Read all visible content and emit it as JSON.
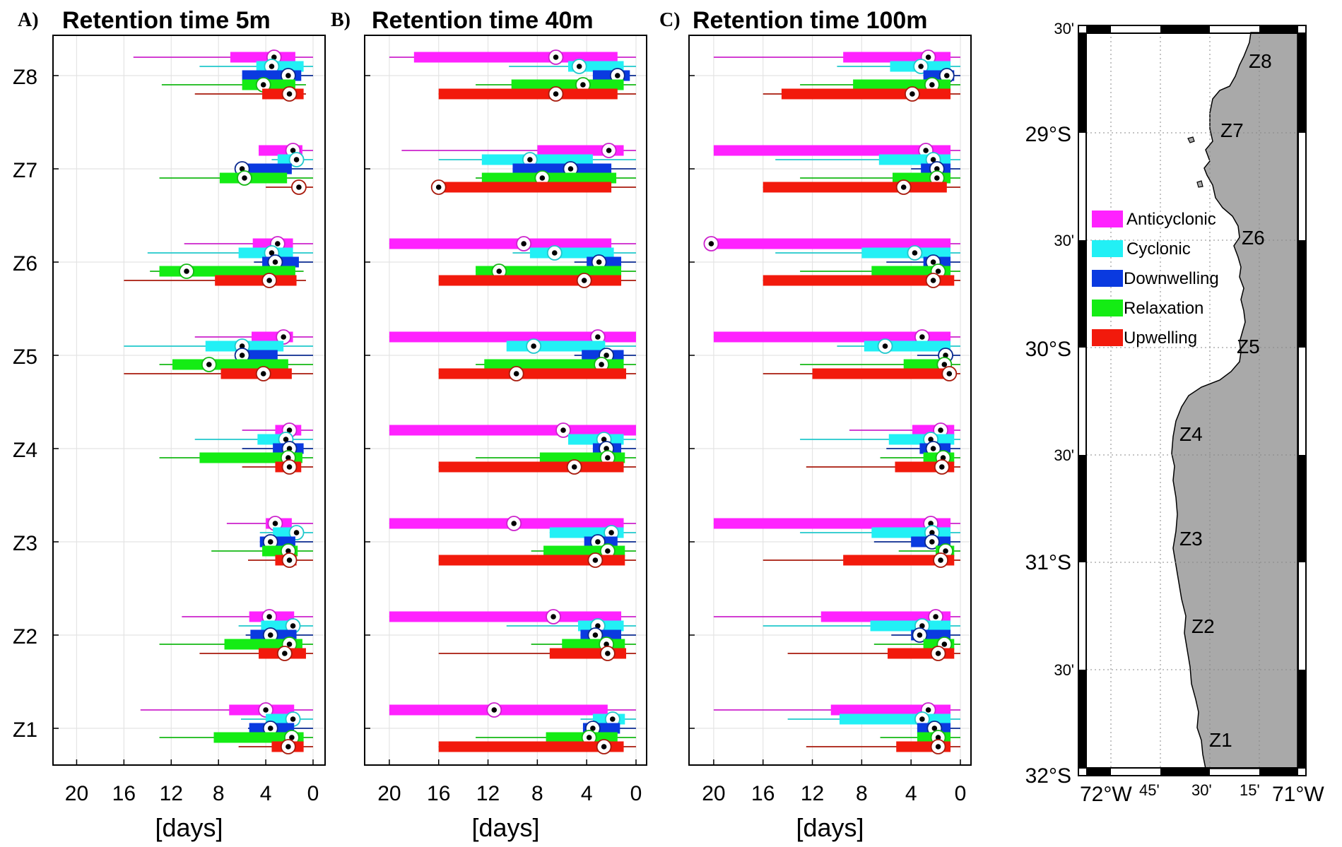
{
  "chart_data": {
    "type": "boxplot-horizontal",
    "categories": [
      "Z8",
      "Z7",
      "Z6",
      "Z5",
      "Z4",
      "Z3",
      "Z2",
      "Z1"
    ],
    "xlabel": "[days]",
    "xlim": [
      22,
      0
    ],
    "xticks": [
      20,
      16,
      12,
      8,
      4,
      0
    ],
    "series_order": [
      "Anticyclonic",
      "Cyclonic",
      "Downwelling",
      "Relaxation",
      "Upwelling"
    ],
    "colors": {
      "Anticyclonic": "#ff22ff",
      "Cyclonic": "#22f0f5",
      "Downwelling": "#0a3ae0",
      "Relaxation": "#14ec14",
      "Upwelling": "#f21a0c"
    },
    "whisker_colors": {
      "Anticyclonic": "#cc22cc",
      "Cyclonic": "#20c8cc",
      "Downwelling": "#0a2a90",
      "Relaxation": "#14b814",
      "Upwelling": "#a81a0c"
    },
    "panels": [
      {
        "label": "A)",
        "title": "Retention time 5m",
        "boxes": [
          [
            [
              15.2,
              7,
              1.5,
              3.3,
              0
            ],
            [
              9.6,
              4.8,
              0.8,
              3.5,
              0
            ],
            [
              5.5,
              6,
              1,
              2.1,
              0
            ],
            [
              12.8,
              6,
              1.5,
              4.2,
              0.6
            ],
            [
              10,
              4.3,
              0.8,
              2,
              0.6
            ]
          ],
          [
            [
              4.6,
              4.6,
              0.9,
              1.7,
              0
            ],
            [
              3.5,
              3,
              1.2,
              1.4,
              0
            ],
            [
              6,
              6,
              1.8,
              6,
              0
            ],
            [
              13,
              7.9,
              2.2,
              5.8,
              0
            ],
            [
              4,
              1.6,
              0.7,
              1.2,
              0
            ]
          ],
          [
            [
              10.9,
              5.1,
              1.7,
              3,
              0
            ],
            [
              14,
              6.3,
              1.7,
              3.5,
              0
            ],
            [
              5,
              4.3,
              1.2,
              3.2,
              0
            ],
            [
              13.8,
              13,
              1.5,
              10.7,
              0.8
            ],
            [
              16,
              8.3,
              1.4,
              3.7,
              0.6
            ]
          ],
          [
            [
              10,
              5.2,
              1.7,
              2.5,
              0
            ],
            [
              16,
              9.1,
              2.5,
              6,
              0
            ],
            [
              6,
              6,
              3,
              6,
              0
            ],
            [
              13,
              11.9,
              2.1,
              8.8,
              0
            ],
            [
              16,
              7.8,
              1.8,
              4.2,
              0
            ]
          ],
          [
            [
              6,
              3.2,
              1,
              2,
              0
            ],
            [
              10,
              4.7,
              1.8,
              2.3,
              0
            ],
            [
              6,
              3.4,
              0.8,
              2,
              0
            ],
            [
              13,
              9.6,
              0.9,
              2.1,
              0
            ],
            [
              6,
              3.2,
              1,
              2,
              0
            ]
          ],
          [
            [
              7.3,
              4,
              1.8,
              3.2,
              0
            ],
            [
              4.5,
              3.4,
              1,
              1.4,
              0
            ],
            [
              4.5,
              4.5,
              1.5,
              3.6,
              0
            ],
            [
              8.6,
              4.3,
              1.3,
              2.1,
              0
            ],
            [
              5.5,
              3.2,
              1.4,
              2,
              0
            ]
          ],
          [
            [
              11.1,
              5.4,
              1.6,
              3.7,
              0
            ],
            [
              6.3,
              4.4,
              1.4,
              1.7,
              0
            ],
            [
              5.7,
              5.3,
              1.4,
              3.6,
              0
            ],
            [
              13,
              7.5,
              0.9,
              2,
              0
            ],
            [
              9.6,
              4.6,
              0.6,
              2.4,
              0
            ]
          ],
          [
            [
              14.6,
              7.1,
              1.6,
              4,
              0
            ],
            [
              6.1,
              4,
              1.2,
              1.7,
              0
            ],
            [
              5.5,
              5.4,
              1.6,
              3.6,
              0
            ],
            [
              13,
              8.4,
              0.8,
              1.8,
              0
            ],
            [
              6.3,
              3.5,
              0.8,
              2.1,
              0
            ]
          ]
        ]
      },
      {
        "label": "B)",
        "title": "Retention time 40m",
        "boxes": [
          [
            [
              20,
              18,
              1.5,
              6.5,
              0
            ],
            [
              10.3,
              5.5,
              1,
              4.6,
              0
            ],
            [
              3.5,
              3.5,
              0.5,
              1.5,
              0
            ],
            [
              13,
              10.1,
              1,
              4.3,
              0
            ],
            [
              16,
              16,
              1.5,
              6.5,
              0
            ]
          ],
          [
            [
              19,
              8,
              1,
              2.2,
              0
            ],
            [
              16,
              12.5,
              3.5,
              8.6,
              0
            ],
            [
              10,
              10,
              2,
              5.3,
              0
            ],
            [
              13,
              12.5,
              1.6,
              7.6,
              0
            ],
            [
              16,
              16,
              2,
              16,
              0
            ]
          ],
          [
            [
              20,
              20,
              2,
              9.1,
              0
            ],
            [
              10,
              8.6,
              1.8,
              6.6,
              0
            ],
            [
              5,
              4,
              1.2,
              3,
              0
            ],
            [
              13,
              13,
              1.2,
              11.1,
              0
            ],
            [
              16,
              16,
              1.2,
              4.2,
              0
            ]
          ],
          [
            [
              20,
              20,
              0,
              3.1,
              0
            ],
            [
              10,
              10.5,
              2.5,
              8.3,
              0
            ],
            [
              5,
              4.4,
              1,
              2.4,
              0
            ],
            [
              13,
              12.3,
              1,
              2.8,
              0
            ],
            [
              16,
              16,
              0.8,
              9.7,
              0
            ]
          ],
          [
            [
              20,
              20,
              0,
              5.9,
              0
            ],
            [
              5,
              5.5,
              1,
              2.6,
              0
            ],
            [
              3.5,
              3.5,
              1.2,
              2.4,
              0
            ],
            [
              13,
              7.8,
              0.9,
              2.3,
              0
            ],
            [
              16,
              16,
              1,
              5,
              0
            ]
          ],
          [
            [
              20,
              20,
              1,
              9.9,
              0
            ],
            [
              7,
              7,
              1,
              2,
              0
            ],
            [
              4,
              4.2,
              1.5,
              3.1,
              0
            ],
            [
              8.5,
              7.5,
              0.9,
              2.3,
              0
            ],
            [
              16,
              16,
              0.9,
              3.3,
              0
            ]
          ],
          [
            [
              20,
              20,
              1.2,
              6.7,
              0
            ],
            [
              10.5,
              4.7,
              1,
              3.1,
              0
            ],
            [
              4.5,
              4.5,
              1.2,
              3.3,
              0
            ],
            [
              8.5,
              6,
              0.9,
              2.4,
              0
            ],
            [
              16,
              7,
              0.8,
              2.3,
              0
            ]
          ],
          [
            [
              20,
              20,
              2.3,
              11.5,
              0
            ],
            [
              4.5,
              3.5,
              0.9,
              1.9,
              0
            ],
            [
              4.3,
              4.3,
              1.3,
              3.5,
              0
            ],
            [
              13,
              7.3,
              1.5,
              3.8,
              0
            ],
            [
              16,
              16,
              1,
              2.6,
              0
            ]
          ]
        ]
      },
      {
        "label": "C)",
        "title": "Retention time 100m",
        "boxes": [
          [
            [
              20,
              9.5,
              0.8,
              2.6,
              0
            ],
            [
              10,
              5.7,
              0.8,
              3.2,
              0
            ],
            [
              3,
              3,
              0.5,
              1.1,
              0
            ],
            [
              13,
              8.7,
              0.8,
              2.3,
              0
            ],
            [
              16,
              14.5,
              0.8,
              3.9,
              0
            ]
          ],
          [
            [
              20,
              20,
              0.8,
              2.8,
              0
            ],
            [
              15,
              6.6,
              0.8,
              2.2,
              0
            ],
            [
              4,
              3.2,
              0.8,
              1.9,
              0
            ],
            [
              13,
              5.5,
              0.8,
              1.9,
              0
            ],
            [
              16,
              16,
              1.1,
              4.6,
              0
            ]
          ],
          [
            [
              20,
              20,
              0.8,
              20.2,
              0
            ],
            [
              15,
              8,
              0.8,
              3.7,
              0
            ],
            [
              6,
              3,
              0.8,
              2.2,
              0
            ],
            [
              13,
              7.2,
              0.8,
              1.8,
              0
            ],
            [
              16,
              16,
              0.5,
              2.2,
              0
            ]
          ],
          [
            [
              20,
              20,
              0.8,
              3.1,
              0
            ],
            [
              10,
              7.8,
              0.8,
              6.1,
              0
            ],
            [
              3.5,
              1.5,
              0.8,
              1.2,
              0
            ],
            [
              13,
              4.6,
              0.8,
              1.3,
              0
            ],
            [
              16,
              12,
              0.5,
              0.9,
              0
            ]
          ],
          [
            [
              9,
              3.9,
              0.5,
              1.6,
              0
            ],
            [
              13,
              5.8,
              0.5,
              2.4,
              0
            ],
            [
              6,
              3.3,
              0.8,
              2.2,
              0
            ],
            [
              6.5,
              3,
              0.5,
              1.4,
              0
            ],
            [
              12.5,
              5.3,
              0.5,
              1.5,
              0
            ]
          ],
          [
            [
              20,
              20,
              0.8,
              2.4,
              0
            ],
            [
              13,
              7.2,
              0.8,
              2.3,
              0
            ],
            [
              7,
              4,
              0.8,
              2.3,
              0
            ],
            [
              5,
              2,
              0.5,
              1.2,
              0
            ],
            [
              16,
              9.5,
              0.5,
              1.6,
              0
            ]
          ],
          [
            [
              20,
              11.3,
              0.8,
              2,
              0
            ],
            [
              16,
              7.3,
              0.8,
              3.1,
              0
            ],
            [
              5.6,
              4,
              0.8,
              3.3,
              0
            ],
            [
              7,
              3,
              0.5,
              1.3,
              0
            ],
            [
              14,
              5.9,
              0.5,
              1.8,
              0
            ]
          ],
          [
            [
              20,
              10.5,
              0.8,
              2.6,
              0
            ],
            [
              14,
              9.8,
              0.8,
              3.1,
              0
            ],
            [
              3.5,
              3.5,
              0.8,
              2.1,
              0
            ],
            [
              6.5,
              3.5,
              0.8,
              1.8,
              0
            ],
            [
              12.5,
              5.2,
              0.8,
              1.8,
              0
            ]
          ]
        ]
      }
    ]
  },
  "map": {
    "lat_labels": [
      "29°S",
      "30°S",
      "31°S",
      "32°S"
    ],
    "minute_labels": [
      "30'",
      "30'",
      "30'",
      "30'"
    ],
    "lon_labels": [
      "72°W",
      "45'",
      "30'",
      "15'",
      "71°W"
    ],
    "zones": [
      "Z8",
      "Z7",
      "Z6",
      "Z5",
      "Z4",
      "Z3",
      "Z2",
      "Z1"
    ],
    "legend": [
      "Anticyclonic",
      "Cyclonic",
      "Downwelling",
      "Relaxation",
      "Upwelling"
    ],
    "land_color": "#a9a9a9"
  }
}
